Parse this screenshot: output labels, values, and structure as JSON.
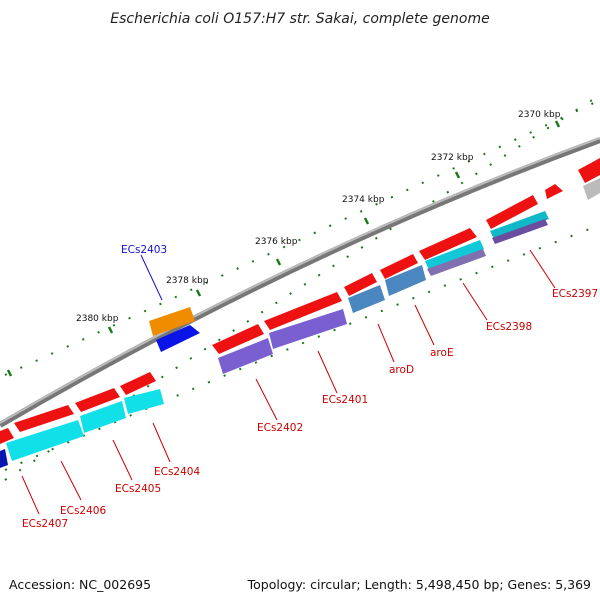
{
  "title": "Escherichia coli O157:H7 str. Sakai, complete genome",
  "footer": {
    "accession": "Accession: NC_002695",
    "summary": "Topology: circular; Length: 5,498,450 bp; Genes: 5,369"
  },
  "ticks": [
    {
      "label": "2370 kbp"
    },
    {
      "label": "2372 kbp"
    },
    {
      "label": "2374 kbp"
    },
    {
      "label": "2376 kbp"
    },
    {
      "label": "2378 kbp"
    },
    {
      "label": "2380 kbp"
    }
  ],
  "gene_labels": [
    {
      "text": "ECs2403",
      "color": "#1111cc"
    },
    {
      "text": "ECs2397",
      "color": "#cc0000"
    },
    {
      "text": "ECs2398",
      "color": "#cc0000"
    },
    {
      "text": "aroE",
      "color": "#cc0000"
    },
    {
      "text": "aroD",
      "color": "#cc0000"
    },
    {
      "text": "ECs2401",
      "color": "#cc0000"
    },
    {
      "text": "ECs2402",
      "color": "#cc0000"
    },
    {
      "text": "ECs2404",
      "color": "#cc0000"
    },
    {
      "text": "ECs2405",
      "color": "#cc0000"
    },
    {
      "text": "ECs2406",
      "color": "#cc0000"
    },
    {
      "text": "ECs2407",
      "color": "#cc0000"
    }
  ],
  "colors": {
    "cds": "#ee1111",
    "gene_cyan": "#11e0e8",
    "gene_purple": "#7a5fd0",
    "gene_steel": "#4a86c0",
    "gene_orange": "#f08c00",
    "gene_blue": "#0a14e6",
    "backbone": "#888888",
    "tick": "#1a7a1a",
    "label_red": "#cc0000",
    "label_blue": "#1111cc"
  }
}
